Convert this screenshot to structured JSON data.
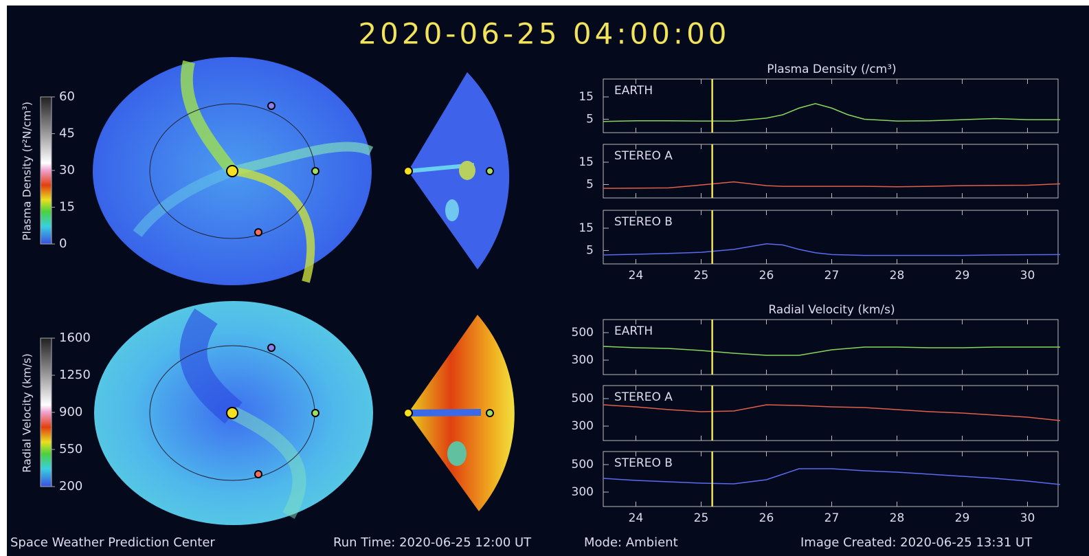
{
  "header": {
    "title": "2020-06-25 04:00:00"
  },
  "colorbars": [
    {
      "label": "Plasma Density (r²N/cm³)",
      "lim": [
        0,
        60
      ],
      "ticks": [
        0,
        15,
        30,
        45,
        60
      ]
    },
    {
      "label": "Radial Velocity (km/s)",
      "lim": [
        200,
        1600
      ],
      "ticks": [
        200,
        550,
        900,
        1250,
        1600
      ]
    }
  ],
  "chart_data": [
    {
      "type": "line",
      "title": "Plasma Density (/cm³)",
      "x": [
        23.5,
        24,
        24.5,
        25,
        25.5,
        26,
        26.25,
        26.5,
        26.75,
        27,
        27.25,
        27.5,
        28,
        28.5,
        29,
        29.5,
        30,
        30.5
      ],
      "series": [
        {
          "name": "EARTH",
          "color": "#86d95e",
          "values": [
            4,
            4.3,
            4.3,
            4.2,
            4.2,
            5.5,
            7,
            10,
            12,
            10,
            7,
            5,
            4.2,
            4.3,
            4.8,
            5.3,
            4.8,
            4.8
          ]
        }
      ],
      "xlim": [
        23.5,
        30.5
      ],
      "xticks": [
        24,
        25,
        26,
        27,
        28,
        29,
        30
      ],
      "ylim": [
        -1,
        23
      ],
      "yticks": [
        5,
        15
      ],
      "vline": 25.17
    },
    {
      "type": "line",
      "x": [
        23.5,
        24,
        24.5,
        25,
        25.5,
        26,
        26.25,
        26.5,
        26.75,
        27,
        27.25,
        27.5,
        28,
        28.5,
        29,
        29.5,
        30,
        30.5
      ],
      "series": [
        {
          "name": "STEREO A",
          "color": "#e0604a",
          "values": [
            3.3,
            3.4,
            3.5,
            4.8,
            6.2,
            4.5,
            4.2,
            4.2,
            4.2,
            4.2,
            4.2,
            4.2,
            4,
            4.2,
            4.5,
            4.6,
            4.7,
            5.3
          ]
        }
      ],
      "xlim": [
        23.5,
        30.5
      ],
      "xticks": [
        24,
        25,
        26,
        27,
        28,
        29,
        30
      ],
      "ylim": [
        -1,
        23
      ],
      "yticks": [
        5,
        15
      ],
      "vline": 25.17
    },
    {
      "type": "line",
      "x": [
        23.5,
        24,
        24.5,
        25,
        25.5,
        26,
        26.25,
        26.5,
        26.75,
        27,
        27.25,
        27.5,
        28,
        28.5,
        29,
        29.5,
        30,
        30.5
      ],
      "series": [
        {
          "name": "STEREO B",
          "color": "#5a6cf0",
          "values": [
            3,
            3.3,
            3.7,
            4.2,
            5.5,
            8,
            7.5,
            5.5,
            4,
            3.2,
            3,
            2.8,
            2.8,
            2.8,
            2.8,
            3,
            3.1,
            3.2
          ]
        }
      ],
      "xlim": [
        23.5,
        30.5
      ],
      "xticks": [
        24,
        25,
        26,
        27,
        28,
        29,
        30
      ],
      "ylim": [
        -1,
        23
      ],
      "yticks": [
        5,
        15
      ],
      "vline": 25.17
    },
    {
      "type": "line",
      "title": "Radial Velocity (km/s)",
      "x": [
        23.5,
        24,
        24.5,
        25,
        25.5,
        26,
        26.5,
        27,
        27.5,
        28,
        28.5,
        29,
        29.5,
        30,
        30.5
      ],
      "series": [
        {
          "name": "EARTH",
          "color": "#86d95e",
          "values": [
            400,
            390,
            385,
            370,
            350,
            335,
            335,
            375,
            395,
            395,
            390,
            390,
            395,
            395,
            395
          ]
        }
      ],
      "xlim": [
        23.5,
        30.5
      ],
      "xticks": [
        24,
        25,
        26,
        27,
        28,
        29,
        30
      ],
      "ylim": [
        195,
        595
      ],
      "yticks": [
        300,
        500
      ],
      "vline": 25.17
    },
    {
      "type": "line",
      "x": [
        23.5,
        24,
        24.5,
        25,
        25.5,
        26,
        26.5,
        27,
        27.5,
        28,
        28.5,
        29,
        29.5,
        30,
        30.5
      ],
      "series": [
        {
          "name": "STEREO A",
          "color": "#e0604a",
          "values": [
            455,
            440,
            420,
            405,
            410,
            455,
            450,
            440,
            435,
            420,
            405,
            395,
            380,
            365,
            340
          ]
        }
      ],
      "xlim": [
        23.5,
        30.5
      ],
      "xticks": [
        24,
        25,
        26,
        27,
        28,
        29,
        30
      ],
      "ylim": [
        195,
        595
      ],
      "yticks": [
        300,
        500
      ],
      "vline": 25.17
    },
    {
      "type": "line",
      "x": [
        23.5,
        24,
        24.5,
        25,
        25.5,
        26,
        26.5,
        27,
        27.5,
        28,
        28.5,
        29,
        29.5,
        30,
        30.5
      ],
      "series": [
        {
          "name": "STEREO B",
          "color": "#5a6cf0",
          "values": [
            400,
            385,
            375,
            365,
            360,
            390,
            470,
            470,
            455,
            445,
            430,
            415,
            400,
            380,
            355
          ]
        }
      ],
      "xlim": [
        23.5,
        30.5
      ],
      "xticks": [
        24,
        25,
        26,
        27,
        28,
        29,
        30
      ],
      "ylim": [
        195,
        595
      ],
      "yticks": [
        300,
        500
      ],
      "vline": 25.17
    }
  ],
  "footer": {
    "center": "Space Weather Prediction Center",
    "run_time": "Run Time: 2020-06-25 12:00 UT",
    "mode": "Mode: Ambient",
    "created": "Image Created: 2020-06-25 13:31 UT"
  }
}
